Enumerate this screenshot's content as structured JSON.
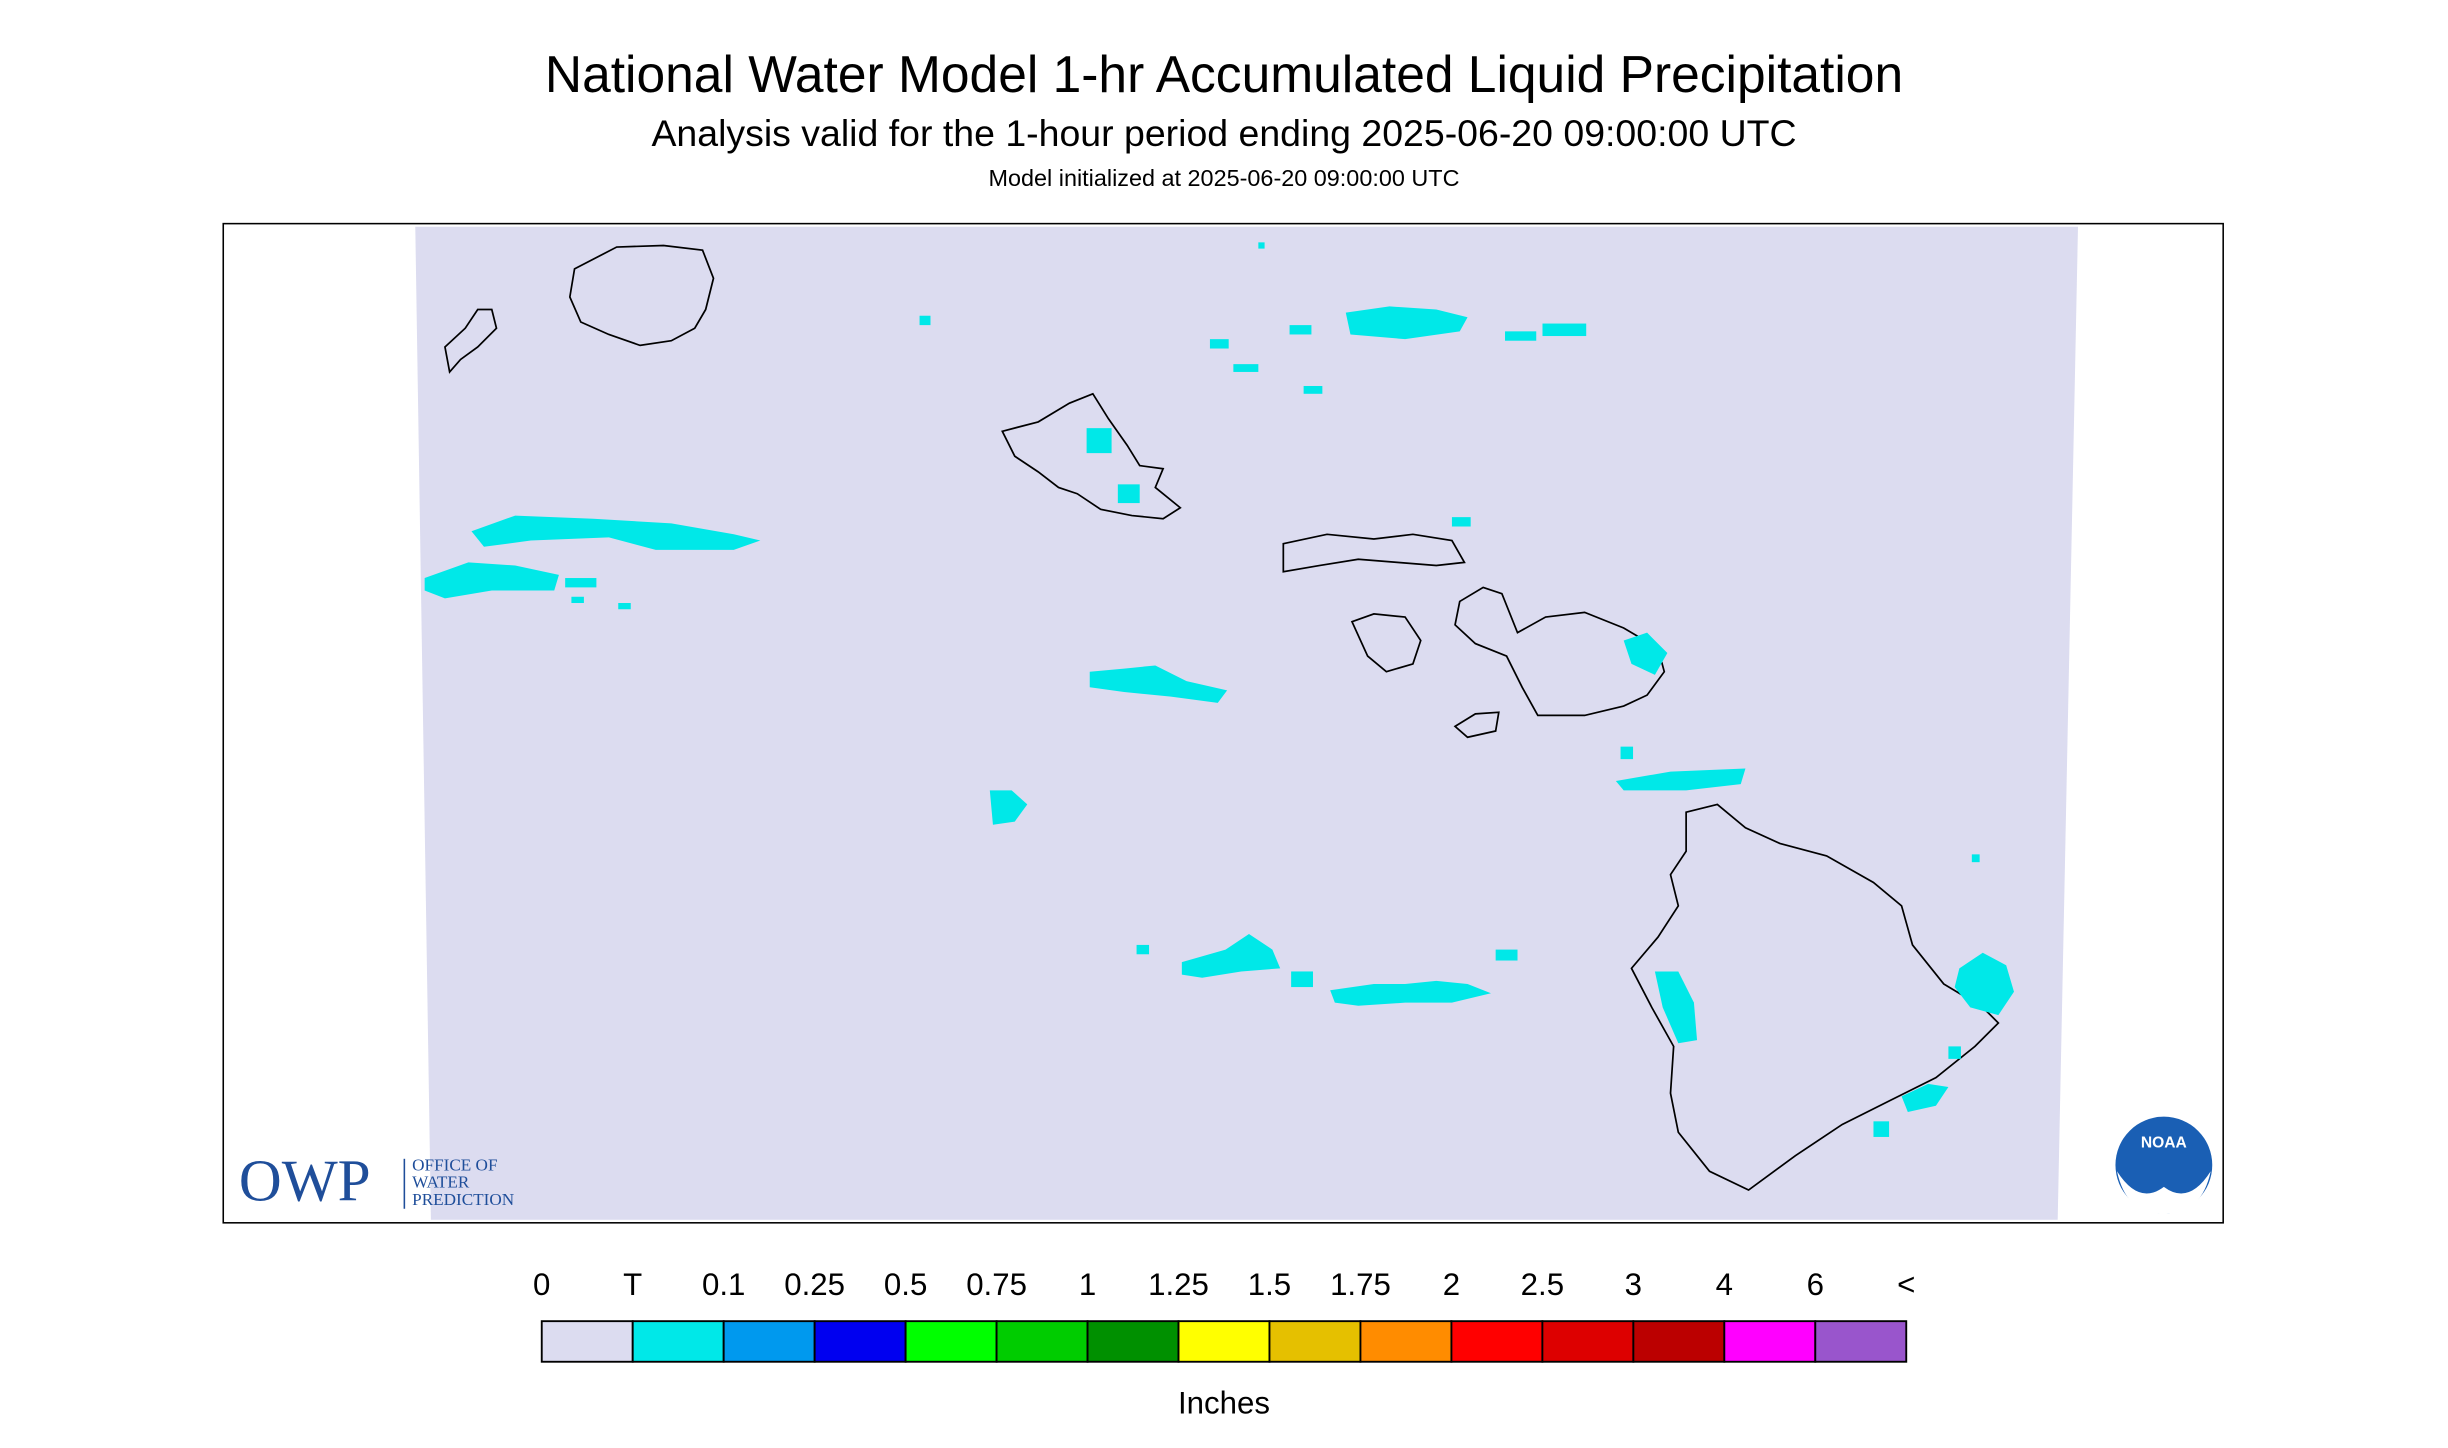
{
  "header": {
    "title": "National Water Model 1-hr Accumulated Liquid Precipitation",
    "subtitle": "Analysis valid for the 1-hour period ending 2025-06-20 09:00:00 UTC",
    "initialized": "Model initialized at 2025-06-20 09:00:00 UTC"
  },
  "legend": {
    "labels": [
      "0",
      "T",
      "0.1",
      "0.25",
      "0.5",
      "0.75",
      "1",
      "1.25",
      "1.5",
      "1.75",
      "2",
      "2.5",
      "3",
      "4",
      "6",
      "<"
    ],
    "colors": [
      "#dcdcf0",
      "#00e8e8",
      "#0099ee",
      "#0000f0",
      "#00ff00",
      "#00cc00",
      "#009000",
      "#ffff00",
      "#e5c000",
      "#ff8c00",
      "#ff0000",
      "#dd0000",
      "#bb0000",
      "#ff00ff",
      "#9955cc"
    ],
    "unit": "Inches"
  },
  "logos": {
    "owp": "OWP",
    "owp_name": [
      "OFFICE OF",
      "WATER",
      "PREDICTION"
    ],
    "noaa": "NOAA"
  }
}
